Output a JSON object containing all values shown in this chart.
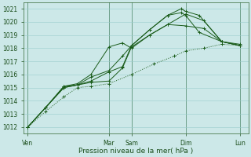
{
  "title": "",
  "xlabel": "Pression niveau de la mer( hPa )",
  "ylim": [
    1011.5,
    1021.5
  ],
  "yticks": [
    1012,
    1013,
    1014,
    1015,
    1016,
    1017,
    1018,
    1019,
    1020,
    1021
  ],
  "bg_color": "#cce8e8",
  "grid_color": "#99cccc",
  "line_color": "#1a5c1a",
  "xlim": [
    0,
    100
  ],
  "xtick_positions": [
    2,
    38,
    48,
    72,
    96
  ],
  "xtick_labels": [
    "Ven",
    "Mar",
    "Sam",
    "Dim",
    "Lun"
  ],
  "vline_positions": [
    2,
    38,
    48,
    72,
    96
  ],
  "lines": [
    {
      "x": [
        2,
        10,
        18,
        24,
        30,
        38,
        48,
        58,
        67,
        72,
        80,
        88,
        96
      ],
      "y": [
        1012.0,
        1013.2,
        1014.3,
        1015.0,
        1015.1,
        1015.3,
        1016.0,
        1016.8,
        1017.4,
        1017.8,
        1018.0,
        1018.3,
        1018.2
      ],
      "style": "dotted"
    },
    {
      "x": [
        2,
        10,
        18,
        24,
        30,
        38,
        44,
        48,
        56,
        64,
        72,
        80,
        88,
        96
      ],
      "y": [
        1012.0,
        1013.5,
        1015.0,
        1015.2,
        1015.4,
        1015.5,
        1016.5,
        1018.1,
        1019.0,
        1019.8,
        1019.7,
        1019.5,
        1018.5,
        1018.2
      ],
      "style": "solid"
    },
    {
      "x": [
        2,
        10,
        18,
        24,
        30,
        38,
        44,
        48,
        56,
        64,
        72,
        80,
        88,
        96
      ],
      "y": [
        1012.0,
        1013.5,
        1015.1,
        1015.3,
        1016.0,
        1018.1,
        1018.4,
        1018.0,
        1019.0,
        1019.8,
        1020.6,
        1020.1,
        1018.5,
        1018.2
      ],
      "style": "solid"
    },
    {
      "x": [
        2,
        10,
        18,
        24,
        30,
        38,
        44,
        48,
        56,
        64,
        70,
        72,
        78,
        88,
        96
      ],
      "y": [
        1012.0,
        1013.5,
        1015.1,
        1015.2,
        1015.5,
        1016.2,
        1016.6,
        1018.2,
        1019.4,
        1020.5,
        1021.0,
        1020.8,
        1020.5,
        1018.5,
        1018.3
      ],
      "style": "solid"
    },
    {
      "x": [
        2,
        10,
        18,
        24,
        30,
        38,
        44,
        48,
        56,
        64,
        70,
        72,
        78,
        88,
        96
      ],
      "y": [
        1012.0,
        1013.5,
        1015.0,
        1015.2,
        1015.8,
        1016.3,
        1017.4,
        1018.2,
        1019.4,
        1020.5,
        1020.7,
        1020.5,
        1019.2,
        1018.5,
        1018.2
      ],
      "style": "solid"
    }
  ]
}
